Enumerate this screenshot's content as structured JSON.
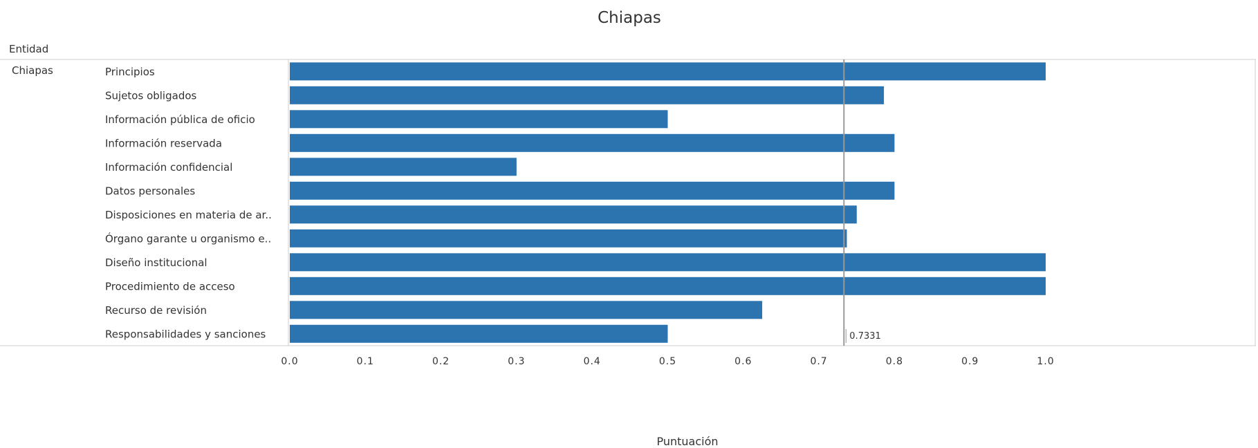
{
  "chart_data": {
    "type": "bar",
    "orientation": "horizontal",
    "title": "Chiapas",
    "row_header": "Entidad",
    "entity": "Chiapas",
    "xlabel": "Puntuación",
    "xlim": [
      0,
      1.0
    ],
    "xticks": [
      "0.0",
      "0.1",
      "0.2",
      "0.3",
      "0.4",
      "0.5",
      "0.6",
      "0.7",
      "0.8",
      "0.9",
      "1.0"
    ],
    "grid": false,
    "bar_color": "#2b74b0",
    "categories": [
      "Principios",
      "Sujetos obligados",
      "Información pública de oficio",
      "Información reservada",
      "Información confidencial",
      "Datos personales",
      "Disposiciones en materia de ar..",
      "Órgano garante u organismo e..",
      "Diseño institucional",
      "Procedimiento de acceso",
      "Recurso de revisión",
      "Responsabilidades y sanciones"
    ],
    "values": [
      1.0,
      0.786,
      0.5,
      0.8,
      0.3,
      0.8,
      0.75,
      0.737,
      1.0,
      1.0,
      0.625,
      0.5
    ],
    "reference_line": {
      "value": 0.7331,
      "label": "0.7331"
    }
  }
}
